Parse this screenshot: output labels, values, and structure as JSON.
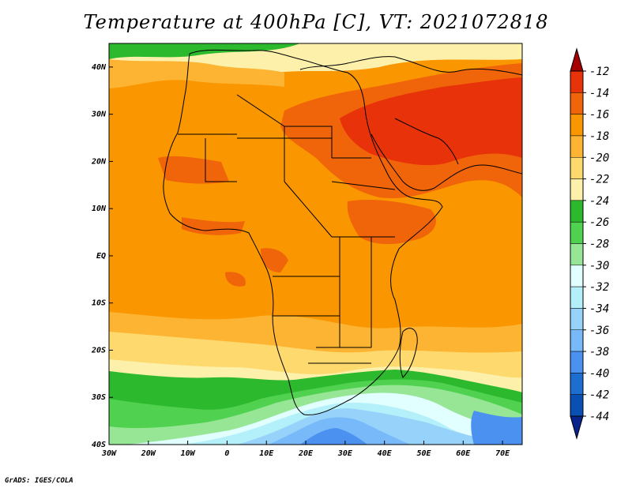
{
  "title": "Temperature at 400hPa [C], VT: 2021072818",
  "credit": "GrADS: IGES/COLA",
  "map": {
    "lon_labels": [
      "30W",
      "20W",
      "10W",
      "0",
      "10E",
      "20E",
      "30E",
      "40E",
      "50E",
      "60E",
      "70E"
    ],
    "lat_labels": [
      "40N",
      "30N",
      "20N",
      "10N",
      "EQ",
      "10S",
      "20S",
      "30S",
      "40S"
    ],
    "lon_range": [
      -30,
      75
    ],
    "lat_range": [
      -40,
      45
    ]
  },
  "colorbar": {
    "labels": [
      "-12",
      "-14",
      "-16",
      "-18",
      "-20",
      "-22",
      "-24",
      "-26",
      "-28",
      "-30",
      "-32",
      "-34",
      "-36",
      "-38",
      "-40",
      "-42",
      "-44"
    ],
    "colors": [
      "#a50000",
      "#e8320a",
      "#f0640a",
      "#fa9600",
      "#fcb432",
      "#fdd96e",
      "#fdf0aa",
      "#2db92d",
      "#50d250",
      "#96e696",
      "#e1ffff",
      "#b4f0fa",
      "#96d2fa",
      "#78b9fa",
      "#4b91f0",
      "#1e6ed2",
      "#0a4fb4",
      "#08238c"
    ]
  }
}
